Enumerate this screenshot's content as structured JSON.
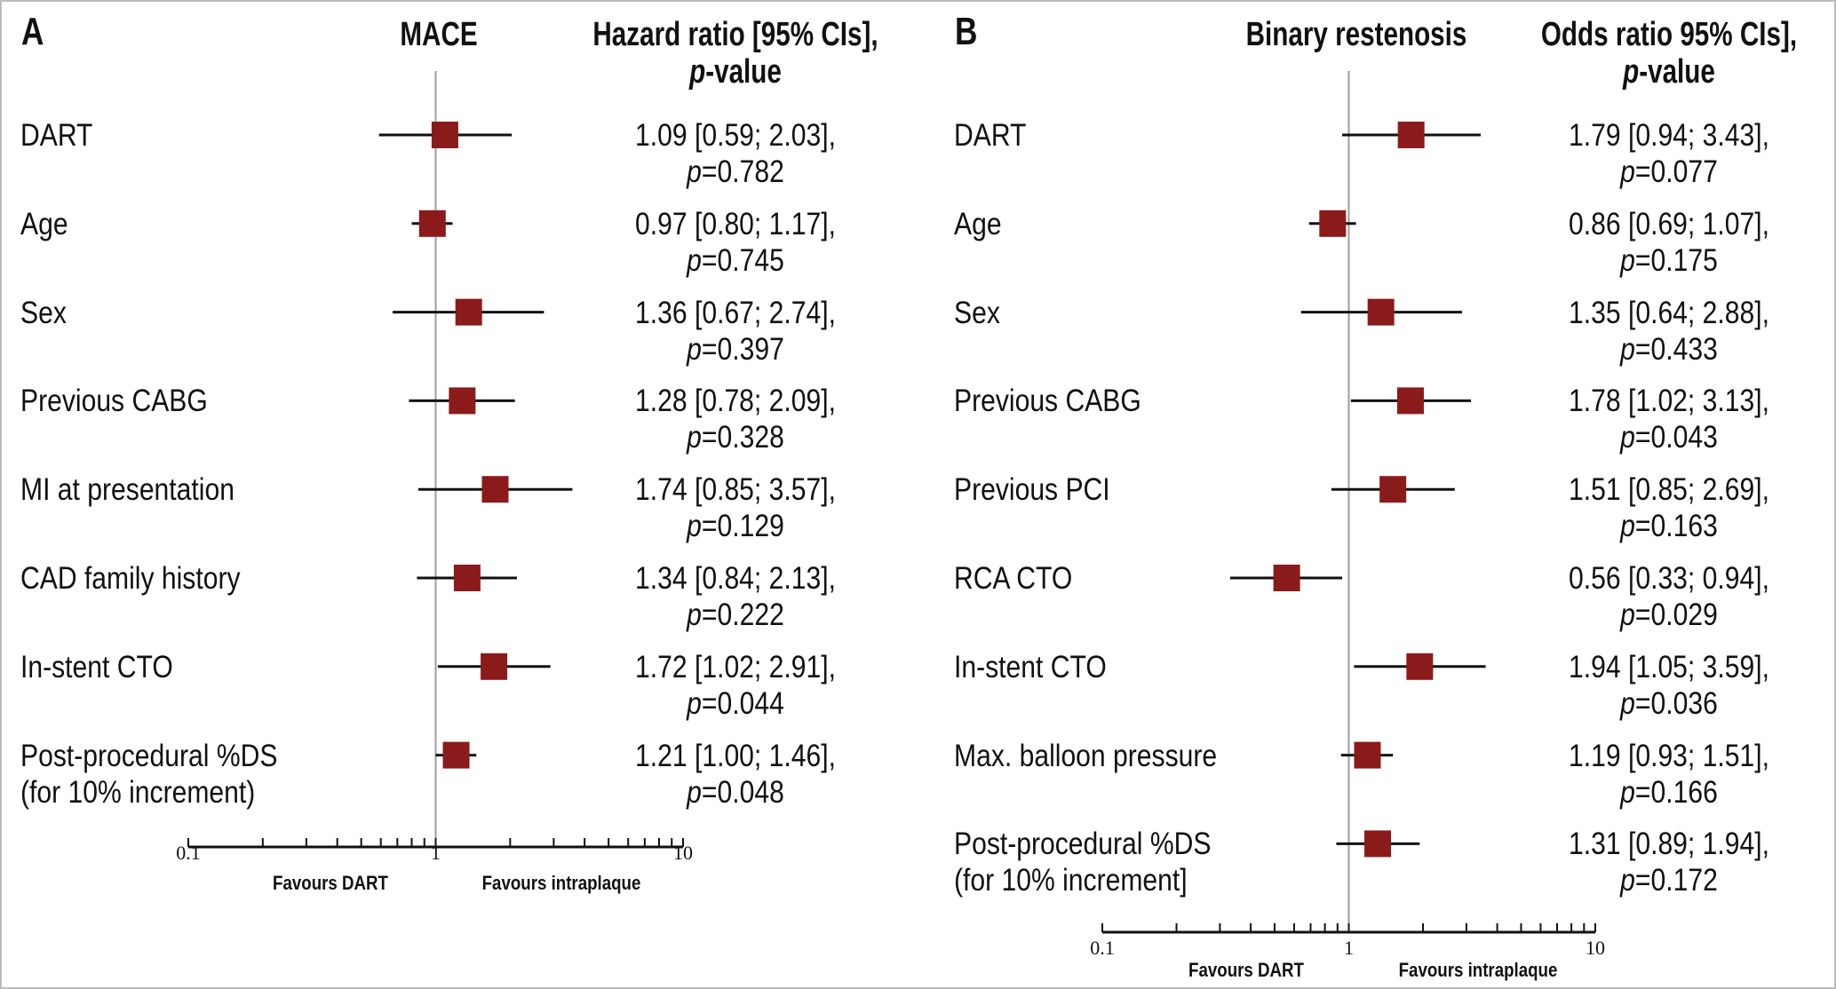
{
  "chart_data": [
    {
      "type": "forest",
      "panel_label": "A",
      "title": "MACE",
      "value_header": [
        "Hazard ratio [95% CIs],",
        "-value"
      ],
      "value_header_italic": "p",
      "x_scale": "log",
      "xlim": [
        0.1,
        10
      ],
      "x_ticks": [
        "0.1",
        "1",
        "10"
      ],
      "favours_left": "Favours DART",
      "favours_right": "Favours intraplaque",
      "rows": [
        {
          "label": [
            "DART"
          ],
          "est": 1.09,
          "lo": 0.59,
          "hi": 2.03,
          "text": "1.09 [0.59; 2.03],",
          "p": "=0.782"
        },
        {
          "label": [
            "Age"
          ],
          "est": 0.97,
          "lo": 0.8,
          "hi": 1.17,
          "text": "0.97 [0.80; 1.17],",
          "p": "=0.745"
        },
        {
          "label": [
            "Sex"
          ],
          "est": 1.36,
          "lo": 0.67,
          "hi": 2.74,
          "text": "1.36 [0.67; 2.74],",
          "p": "=0.397"
        },
        {
          "label": [
            "Previous CABG"
          ],
          "est": 1.28,
          "lo": 0.78,
          "hi": 2.09,
          "text": "1.28 [0.78; 2.09],",
          "p": "=0.328"
        },
        {
          "label": [
            "MI at presentation"
          ],
          "est": 1.74,
          "lo": 0.85,
          "hi": 3.57,
          "text": "1.74 [0.85; 3.57],",
          "p": "=0.129"
        },
        {
          "label": [
            "CAD family history"
          ],
          "est": 1.34,
          "lo": 0.84,
          "hi": 2.13,
          "text": "1.34 [0.84; 2.13],",
          "p": "=0.222"
        },
        {
          "label": [
            "In-stent CTO"
          ],
          "est": 1.72,
          "lo": 1.02,
          "hi": 2.91,
          "text": "1.72 [1.02; 2.91],",
          "p": "=0.044"
        },
        {
          "label": [
            "Post-procedural %DS",
            "(for 10% increment)"
          ],
          "est": 1.21,
          "lo": 1.0,
          "hi": 1.46,
          "text": "1.21 [1.00; 1.46],",
          "p": "=0.048"
        }
      ]
    },
    {
      "type": "forest",
      "panel_label": "B",
      "title": "Binary restenosis",
      "value_header": [
        "Odds ratio 95% CIs],",
        "-value"
      ],
      "value_header_italic": "p",
      "x_scale": "log",
      "xlim": [
        0.1,
        10
      ],
      "x_ticks": [
        "0.1",
        "1",
        "10"
      ],
      "favours_left": "Favours DART",
      "favours_right": "Favours intraplaque",
      "rows": [
        {
          "label": [
            "DART"
          ],
          "est": 1.79,
          "lo": 0.94,
          "hi": 3.43,
          "text": "1.79 [0.94; 3.43],",
          "p": "=0.077"
        },
        {
          "label": [
            "Age"
          ],
          "est": 0.86,
          "lo": 0.69,
          "hi": 1.07,
          "text": "0.86 [0.69; 1.07],",
          "p": "=0.175"
        },
        {
          "label": [
            "Sex"
          ],
          "est": 1.35,
          "lo": 0.64,
          "hi": 2.88,
          "text": "1.35 [0.64; 2.88],",
          "p": "=0.433"
        },
        {
          "label": [
            "Previous CABG"
          ],
          "est": 1.78,
          "lo": 1.02,
          "hi": 3.13,
          "text": "1.78 [1.02; 3.13],",
          "p": "=0.043"
        },
        {
          "label": [
            "Previous PCI"
          ],
          "est": 1.51,
          "lo": 0.85,
          "hi": 2.69,
          "text": "1.51 [0.85; 2.69],",
          "p": "=0.163"
        },
        {
          "label": [
            "RCA CTO"
          ],
          "est": 0.56,
          "lo": 0.33,
          "hi": 0.94,
          "text": "0.56 [0.33; 0.94],",
          "p": "=0.029"
        },
        {
          "label": [
            "In-stent CTO"
          ],
          "est": 1.94,
          "lo": 1.05,
          "hi": 3.59,
          "text": "1.94 [1.05; 3.59],",
          "p": "=0.036"
        },
        {
          "label": [
            "Max. balloon pressure"
          ],
          "est": 1.19,
          "lo": 0.93,
          "hi": 1.51,
          "text": "1.19 [0.93; 1.51],",
          "p": "=0.166"
        },
        {
          "label": [
            "Post-procedural %DS",
            "(for 10% increment]"
          ],
          "est": 1.31,
          "lo": 0.89,
          "hi": 1.94,
          "text": "1.31 [0.89; 1.94],",
          "p": "=0.172"
        }
      ]
    }
  ],
  "colors": {
    "marker": "#8b1a1a",
    "line": "#111111",
    "reference_line": "#9e9e9e"
  }
}
